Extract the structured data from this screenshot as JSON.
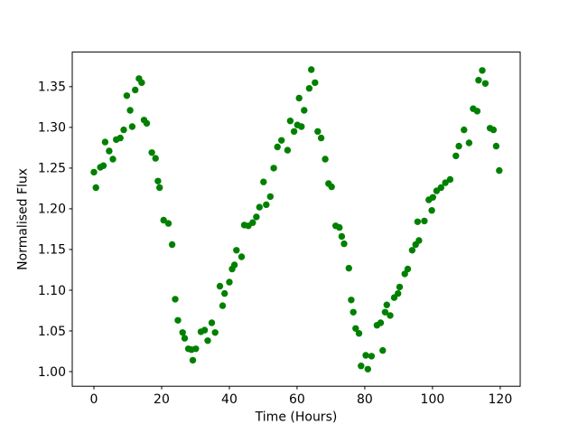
{
  "figure": {
    "background": "#ffffff"
  },
  "chart_data": {
    "type": "scatter",
    "title": "",
    "xlabel": "Time (Hours)",
    "ylabel": "Normalised Flux",
    "marker_color": "#008000",
    "marker_radius": 3.7,
    "axis_color": "#000000",
    "grid": false,
    "legend": null,
    "xlim": [
      -6.4,
      125.9
    ],
    "ylim": [
      0.982,
      1.3925
    ],
    "xticks": [
      0,
      20,
      40,
      60,
      80,
      100,
      120
    ],
    "xtick_labels": [
      "0",
      "20",
      "40",
      "60",
      "80",
      "100",
      "120"
    ],
    "yticks": [
      1.0,
      1.05,
      1.1,
      1.15,
      1.2,
      1.25,
      1.3,
      1.35
    ],
    "ytick_labels": [
      "1.00",
      "1.05",
      "1.10",
      "1.15",
      "1.20",
      "1.25",
      "1.30",
      "1.35"
    ],
    "points": [
      [
        0.0,
        1.245
      ],
      [
        0.6,
        1.226
      ],
      [
        1.9,
        1.251
      ],
      [
        2.8,
        1.253
      ],
      [
        3.3,
        1.282
      ],
      [
        4.5,
        1.271
      ],
      [
        5.6,
        1.261
      ],
      [
        6.6,
        1.285
      ],
      [
        7.8,
        1.287
      ],
      [
        8.8,
        1.297
      ],
      [
        9.7,
        1.339
      ],
      [
        10.7,
        1.321
      ],
      [
        11.3,
        1.301
      ],
      [
        12.2,
        1.346
      ],
      [
        13.3,
        1.36
      ],
      [
        14.1,
        1.355
      ],
      [
        14.8,
        1.309
      ],
      [
        15.6,
        1.305
      ],
      [
        17.1,
        1.269
      ],
      [
        18.2,
        1.262
      ],
      [
        18.9,
        1.234
      ],
      [
        19.4,
        1.226
      ],
      [
        20.6,
        1.186
      ],
      [
        22.0,
        1.182
      ],
      [
        23.1,
        1.156
      ],
      [
        24.0,
        1.089
      ],
      [
        24.8,
        1.063
      ],
      [
        26.2,
        1.048
      ],
      [
        26.8,
        1.041
      ],
      [
        27.9,
        1.028
      ],
      [
        28.8,
        1.027
      ],
      [
        29.2,
        1.014
      ],
      [
        30.1,
        1.028
      ],
      [
        31.6,
        1.049
      ],
      [
        32.7,
        1.051
      ],
      [
        33.6,
        1.038
      ],
      [
        34.8,
        1.06
      ],
      [
        35.8,
        1.048
      ],
      [
        37.2,
        1.105
      ],
      [
        38.0,
        1.081
      ],
      [
        38.6,
        1.096
      ],
      [
        40.0,
        1.11
      ],
      [
        40.8,
        1.126
      ],
      [
        41.5,
        1.131
      ],
      [
        42.1,
        1.149
      ],
      [
        43.6,
        1.141
      ],
      [
        44.4,
        1.18
      ],
      [
        45.6,
        1.179
      ],
      [
        46.9,
        1.183
      ],
      [
        48.0,
        1.19
      ],
      [
        48.9,
        1.202
      ],
      [
        50.1,
        1.233
      ],
      [
        50.9,
        1.205
      ],
      [
        52.1,
        1.215
      ],
      [
        53.1,
        1.25
      ],
      [
        54.2,
        1.276
      ],
      [
        55.4,
        1.284
      ],
      [
        57.2,
        1.272
      ],
      [
        58.0,
        1.308
      ],
      [
        59.1,
        1.295
      ],
      [
        60.1,
        1.303
      ],
      [
        60.6,
        1.336
      ],
      [
        61.3,
        1.301
      ],
      [
        62.1,
        1.321
      ],
      [
        63.6,
        1.348
      ],
      [
        64.2,
        1.371
      ],
      [
        65.3,
        1.355
      ],
      [
        66.1,
        1.295
      ],
      [
        67.1,
        1.287
      ],
      [
        68.3,
        1.261
      ],
      [
        69.3,
        1.231
      ],
      [
        70.2,
        1.227
      ],
      [
        71.4,
        1.179
      ],
      [
        72.5,
        1.177
      ],
      [
        73.2,
        1.166
      ],
      [
        73.9,
        1.157
      ],
      [
        75.3,
        1.127
      ],
      [
        76.0,
        1.088
      ],
      [
        76.6,
        1.073
      ],
      [
        77.3,
        1.053
      ],
      [
        78.3,
        1.047
      ],
      [
        78.9,
        1.007
      ],
      [
        80.3,
        1.02
      ],
      [
        80.9,
        1.003
      ],
      [
        82.0,
        1.019
      ],
      [
        83.6,
        1.057
      ],
      [
        84.7,
        1.06
      ],
      [
        85.3,
        1.026
      ],
      [
        86.0,
        1.073
      ],
      [
        86.5,
        1.082
      ],
      [
        87.5,
        1.069
      ],
      [
        88.7,
        1.091
      ],
      [
        89.8,
        1.096
      ],
      [
        90.3,
        1.104
      ],
      [
        91.8,
        1.12
      ],
      [
        92.7,
        1.126
      ],
      [
        94.0,
        1.149
      ],
      [
        95.0,
        1.156
      ],
      [
        95.6,
        1.184
      ],
      [
        96.0,
        1.161
      ],
      [
        97.6,
        1.185
      ],
      [
        98.9,
        1.211
      ],
      [
        99.8,
        1.198
      ],
      [
        100.1,
        1.214
      ],
      [
        101.2,
        1.222
      ],
      [
        102.5,
        1.226
      ],
      [
        103.8,
        1.232
      ],
      [
        105.2,
        1.236
      ],
      [
        106.9,
        1.265
      ],
      [
        107.8,
        1.277
      ],
      [
        109.3,
        1.297
      ],
      [
        110.8,
        1.281
      ],
      [
        112.0,
        1.323
      ],
      [
        113.2,
        1.32
      ],
      [
        113.6,
        1.358
      ],
      [
        114.7,
        1.37
      ],
      [
        115.6,
        1.354
      ],
      [
        117.0,
        1.299
      ],
      [
        118.0,
        1.297
      ],
      [
        118.8,
        1.277
      ],
      [
        119.7,
        1.247
      ]
    ]
  }
}
